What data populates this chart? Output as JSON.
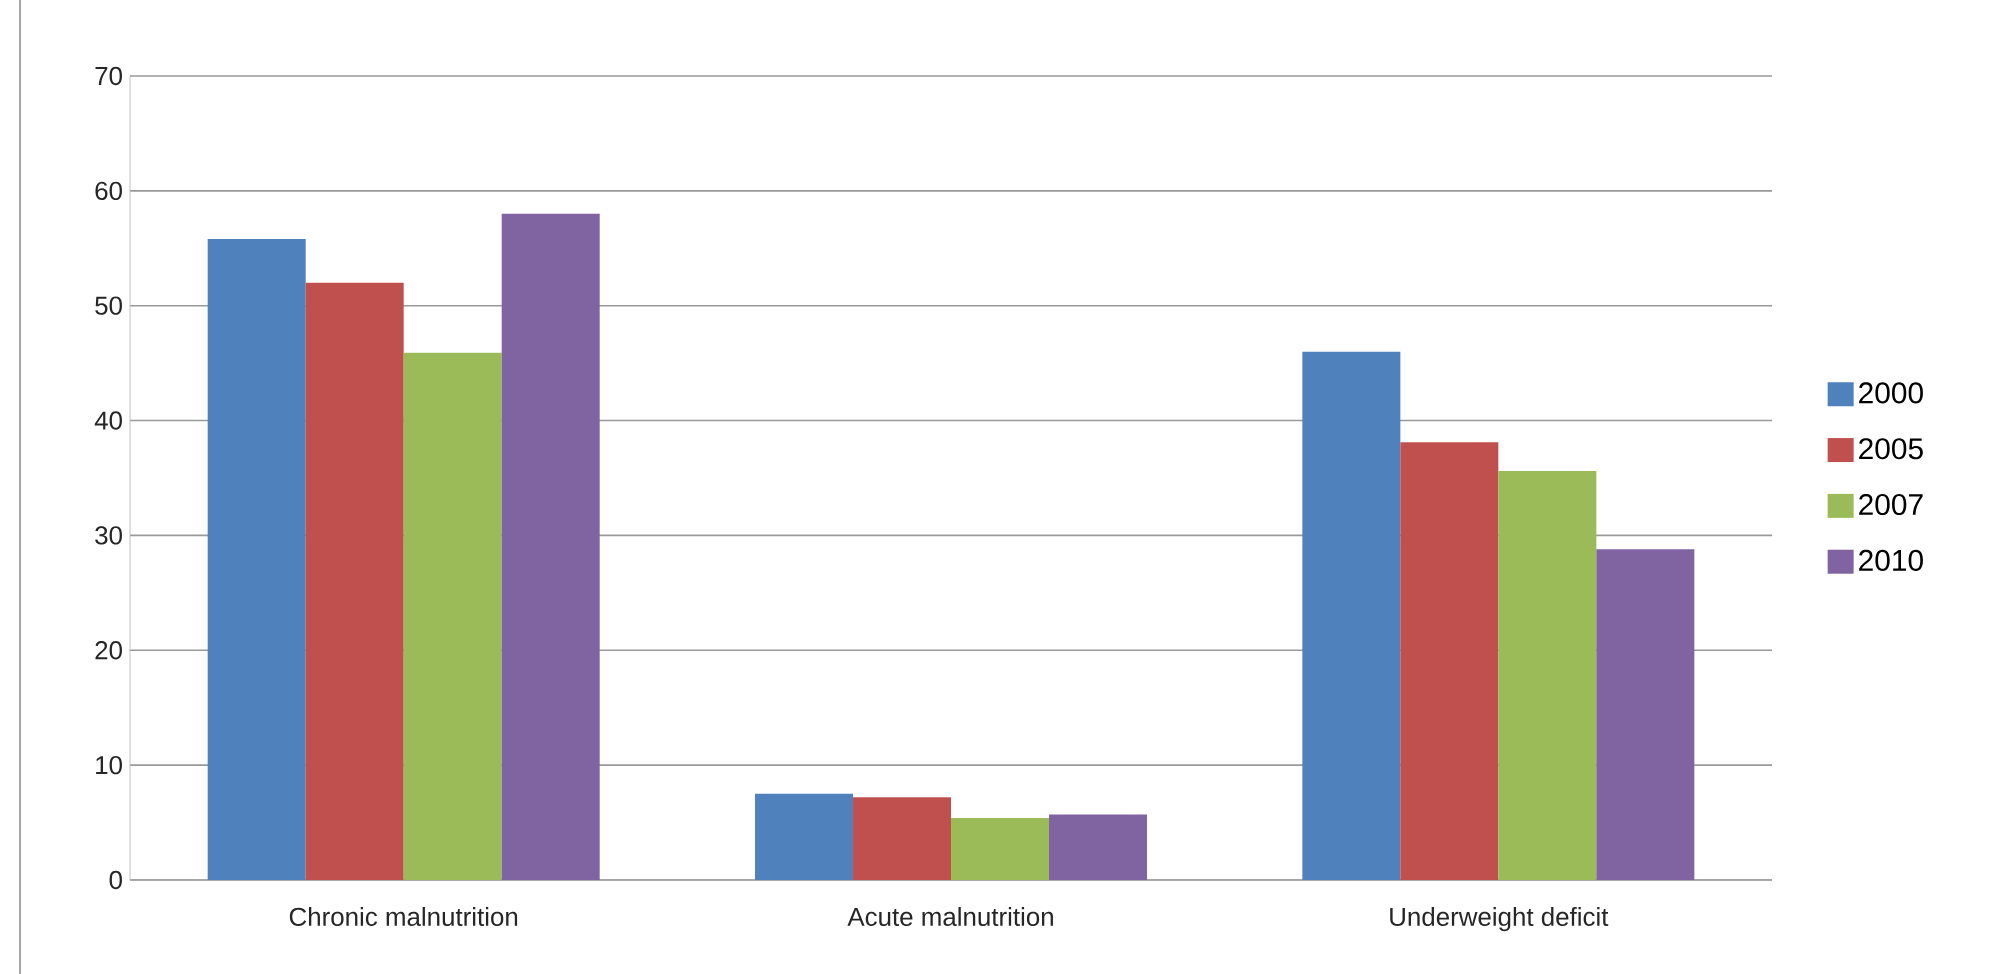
{
  "chart_data": {
    "type": "bar",
    "categories": [
      "Chronic malnutrition",
      "Acute malnutrition",
      "Underweight deficit"
    ],
    "series": [
      {
        "name": "2000",
        "color": "#4f81bd",
        "values": [
          55.8,
          7.5,
          46.0
        ]
      },
      {
        "name": "2005",
        "color": "#c0504d",
        "values": [
          52.0,
          7.2,
          38.1
        ]
      },
      {
        "name": "2007",
        "color": "#9bbb59",
        "values": [
          45.9,
          5.4,
          35.6
        ]
      },
      {
        "name": "2010",
        "color": "#8064a2",
        "values": [
          58.0,
          5.7,
          28.8
        ]
      }
    ],
    "ylim": [
      0,
      70
    ],
    "yticks": [
      0,
      10,
      20,
      30,
      40,
      50,
      60,
      70
    ],
    "grid": "y",
    "legend": "right"
  }
}
